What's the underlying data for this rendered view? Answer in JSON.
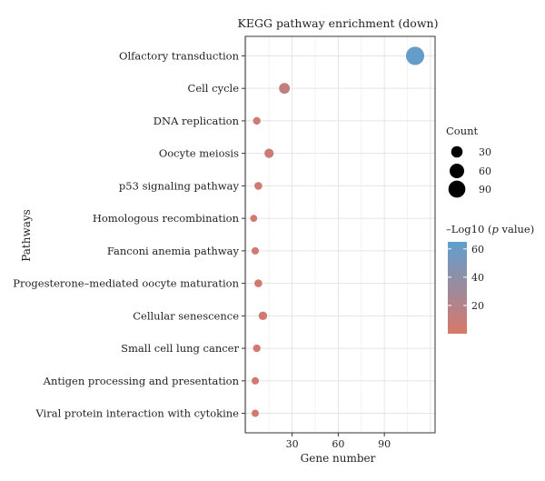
{
  "chart_data": {
    "type": "scatter",
    "title": "KEGG pathway enrichment (down)",
    "xlabel": "Gene number",
    "ylabel": "Pathways",
    "xlim": [
      -0.5,
      123
    ],
    "x_ticks": [
      30,
      60,
      90
    ],
    "grid": true,
    "categories": [
      "Olfactory transduction",
      "Cell cycle",
      "DNA replication",
      "Oocyte meiosis",
      "p53 signaling pathway",
      "Homologous recombination",
      "Fanconi anemia pathway",
      "Progesterone–mediated oocyte maturation",
      "Cellular senescence",
      "Small cell lung cancer",
      "Antigen processing and presentation",
      "Viral protein interaction with cytokine"
    ],
    "points": [
      {
        "category": "Olfactory transduction",
        "x": 110,
        "count": 110,
        "neglog10p": 62
      },
      {
        "category": "Cell cycle",
        "x": 25,
        "count": 25,
        "neglog10p": 13
      },
      {
        "category": "DNA replication",
        "x": 7,
        "count": 7,
        "neglog10p": 5
      },
      {
        "category": "Oocyte meiosis",
        "x": 15,
        "count": 15,
        "neglog10p": 7
      },
      {
        "category": "p53 signaling pathway",
        "x": 8,
        "count": 8,
        "neglog10p": 5
      },
      {
        "category": "Homologous recombination",
        "x": 5,
        "count": 5,
        "neglog10p": 3
      },
      {
        "category": "Fanconi anemia pathway",
        "x": 6,
        "count": 6,
        "neglog10p": 3
      },
      {
        "category": "Progesterone–mediated oocyte maturation",
        "x": 8,
        "count": 8,
        "neglog10p": 3
      },
      {
        "category": "Cellular senescence",
        "x": 11,
        "count": 11,
        "neglog10p": 3
      },
      {
        "category": "Small cell lung cancer",
        "x": 7,
        "count": 7,
        "neglog10p": 3
      },
      {
        "category": "Antigen processing and presentation",
        "x": 6,
        "count": 6,
        "neglog10p": 3
      },
      {
        "category": "Viral protein interaction with cytokine",
        "x": 6,
        "count": 6,
        "neglog10p": 3
      }
    ],
    "size_legend": {
      "title": "Count",
      "values": [
        30,
        60,
        90
      ],
      "labels": [
        "30",
        "60",
        "90"
      ]
    },
    "color_legend": {
      "title_prefix": "–Log10 (",
      "title_italic": "p",
      "title_suffix": " value)",
      "range": [
        0,
        65
      ],
      "ticks": [
        20,
        40,
        60
      ],
      "labels": [
        "20",
        "40",
        "60"
      ],
      "low_color": "#d9776a",
      "high_color": "#5f9fcf"
    }
  }
}
